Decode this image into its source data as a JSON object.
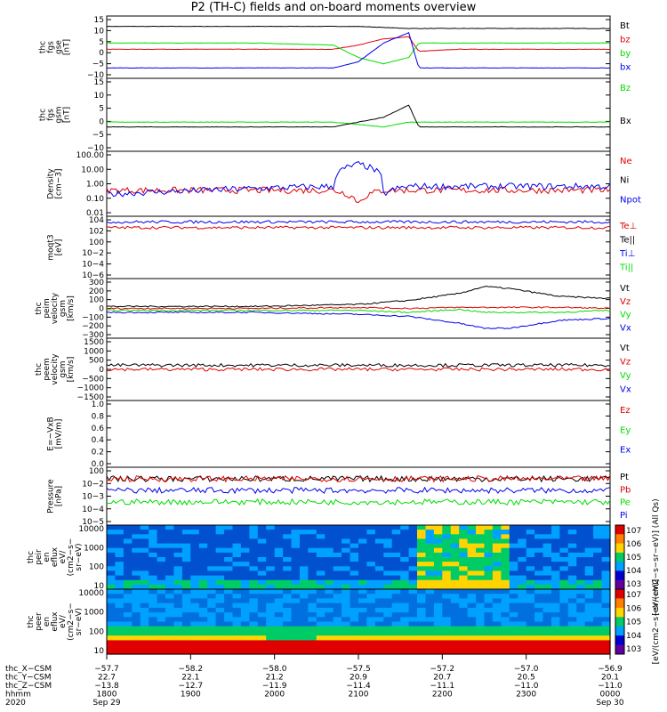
{
  "title": "P2 (TH-C) fields and on-board moments overview",
  "colors": {
    "black": "#000000",
    "red": "#e00000",
    "green": "#00dd00",
    "blue": "#0000ee",
    "axis": "#000000"
  },
  "chart_data": [
    {
      "type": "line",
      "ylabel": [
        "thc",
        "fgs",
        "gse",
        "[nT]"
      ],
      "ylim": [
        -15,
        15
      ],
      "yticks": [
        "15",
        "10",
        "5",
        "0",
        "−5",
        "−10"
      ],
      "legend": [
        {
          "label": "Bt",
          "color": "black"
        },
        {
          "label": "bz",
          "color": "red"
        },
        {
          "label": "by",
          "color": "green"
        },
        {
          "label": "bx",
          "color": "blue"
        }
      ],
      "series": [
        {
          "name": "Bt",
          "color": "black",
          "x": [
            0,
            0.3,
            0.5,
            0.55,
            0.6,
            0.62,
            0.7,
            0.8,
            0.9,
            1
          ],
          "y": [
            10,
            10,
            10,
            9.5,
            9,
            9,
            9,
            9,
            9,
            9
          ]
        },
        {
          "name": "bz",
          "color": "red",
          "x": [
            0,
            0.3,
            0.45,
            0.5,
            0.55,
            0.6,
            0.62,
            0.7,
            0.8,
            0.9,
            1
          ],
          "y": [
            -1,
            -1,
            -1,
            1,
            4,
            5,
            -2,
            -1,
            -1,
            -1,
            -1
          ]
        },
        {
          "name": "by",
          "color": "green",
          "x": [
            0,
            0.3,
            0.45,
            0.5,
            0.55,
            0.6,
            0.62,
            0.7,
            0.8,
            0.9,
            1
          ],
          "y": [
            2,
            2,
            1,
            -5,
            -8,
            -5,
            2,
            2,
            2,
            2,
            2
          ]
        },
        {
          "name": "bx",
          "color": "blue",
          "x": [
            0,
            0.3,
            0.45,
            0.5,
            0.55,
            0.6,
            0.62,
            0.7,
            0.8,
            0.9,
            1
          ],
          "y": [
            -10,
            -10,
            -10,
            -7,
            2,
            7,
            -10,
            -10,
            -10,
            -10,
            -10
          ]
        }
      ]
    },
    {
      "type": "line",
      "ylabel": [
        "thc",
        "fgs",
        "gsm",
        "[nT]"
      ],
      "ylim": [
        -15,
        15
      ],
      "yticks": [
        "15",
        "10",
        "5",
        "0",
        "−5",
        "−10"
      ],
      "legend": [
        {
          "label": "Bz",
          "color": "green"
        },
        {
          "label": "Bx",
          "color": "black"
        }
      ],
      "series": [
        {
          "name": "Bz",
          "color": "green",
          "x": [
            0,
            0.3,
            0.45,
            0.55,
            0.6,
            0.62,
            0.7,
            0.8,
            0.9,
            1
          ],
          "y": [
            -3,
            -3,
            -3,
            -5,
            -3,
            -3,
            -3,
            -3,
            -3,
            -3
          ]
        },
        {
          "name": "Bx",
          "color": "black",
          "x": [
            0,
            0.3,
            0.45,
            0.55,
            0.6,
            0.62,
            0.7,
            0.8,
            0.9,
            1
          ],
          "y": [
            -5,
            -5,
            -5,
            -1,
            4,
            -5,
            -5,
            -5,
            -5,
            -5
          ]
        }
      ]
    },
    {
      "type": "line",
      "ylabel": [
        "Density",
        "[cm−3]"
      ],
      "scale": "log",
      "ylim": [
        0.001,
        100
      ],
      "yticks": [
        "100.00",
        "10.00",
        "1.00",
        "0.10",
        "0.01"
      ],
      "legend": [
        {
          "label": "Ne",
          "color": "red"
        },
        {
          "label": "Ni",
          "color": "black"
        },
        {
          "label": "Npot",
          "color": "blue"
        }
      ],
      "series": [
        {
          "name": "Ne",
          "color": "red",
          "x": [
            0,
            0.2,
            0.45,
            0.5,
            0.55,
            0.6,
            0.65,
            0.75,
            0.85,
            1
          ],
          "y": [
            0.1,
            0.1,
            0.1,
            0.01,
            0.1,
            0.1,
            0.1,
            0.1,
            0.1,
            0.1
          ]
        },
        {
          "name": "Npot",
          "color": "blue",
          "x": [
            0,
            0.2,
            0.45,
            0.5,
            0.55,
            0.6,
            0.65,
            0.75,
            0.85,
            1
          ],
          "y": [
            0.05,
            0.1,
            0.2,
            10,
            0.05,
            0.2,
            0.2,
            0.2,
            0.2,
            0.2
          ]
        }
      ]
    },
    {
      "type": "line",
      "ylabel": [
        "moqt3",
        "[eV]"
      ],
      "scale": "log",
      "ylim": [
        1e-07,
        10000
      ],
      "yticks": [
        "104",
        "102",
        "100",
        "10−2",
        "10−4",
        "10−6"
      ],
      "legend": [
        {
          "label": "Te⊥",
          "color": "red"
        },
        {
          "label": "Te||",
          "color": "black"
        },
        {
          "label": "Ti⊥",
          "color": "blue"
        },
        {
          "label": "Ti||",
          "color": "green"
        }
      ],
      "series": [
        {
          "name": "Te",
          "color": "red",
          "x": [
            0,
            1
          ],
          "y": [
            100,
            100
          ]
        },
        {
          "name": "Ti",
          "color": "blue",
          "x": [
            0,
            1
          ],
          "y": [
            1000,
            1000
          ]
        }
      ]
    },
    {
      "type": "line",
      "ylabel": [
        "thc",
        "peim",
        "velocity",
        "gsm",
        "[km/s]"
      ],
      "ylim": [
        -300,
        300
      ],
      "yticks": [
        "300",
        "200",
        "100",
        "0",
        "−100",
        "−200",
        "−300"
      ],
      "legend": [
        {
          "label": "Vt",
          "color": "black"
        },
        {
          "label": "Vz",
          "color": "red"
        },
        {
          "label": "Vy",
          "color": "green"
        },
        {
          "label": "Vx",
          "color": "blue"
        }
      ],
      "series": [
        {
          "name": "Vt",
          "color": "black",
          "x": [
            0,
            0.3,
            0.5,
            0.6,
            0.7,
            0.75,
            0.8,
            0.9,
            1
          ],
          "y": [
            20,
            20,
            40,
            80,
            150,
            220,
            200,
            120,
            100
          ]
        },
        {
          "name": "Vz",
          "color": "red",
          "x": [
            0,
            0.3,
            0.5,
            0.6,
            0.7,
            0.75,
            0.8,
            0.9,
            1
          ],
          "y": [
            0,
            0,
            10,
            0,
            10,
            10,
            10,
            10,
            0
          ]
        },
        {
          "name": "Vy",
          "color": "green",
          "x": [
            0,
            0.3,
            0.5,
            0.6,
            0.7,
            0.75,
            0.8,
            0.9,
            1
          ],
          "y": [
            -20,
            -20,
            -20,
            -40,
            -10,
            -40,
            -40,
            -40,
            -20
          ]
        },
        {
          "name": "Vx",
          "color": "blue",
          "x": [
            0,
            0.3,
            0.5,
            0.6,
            0.7,
            0.75,
            0.8,
            0.9,
            1
          ],
          "y": [
            -40,
            -40,
            -60,
            -80,
            -150,
            -200,
            -200,
            -120,
            -100
          ]
        }
      ]
    },
    {
      "type": "line",
      "ylabel": [
        "thc",
        "peem",
        "velocity",
        "gsm",
        "[km/s]"
      ],
      "ylim": [
        -1500,
        1500
      ],
      "yticks": [
        "1500",
        "1000",
        "500",
        "0",
        "−500",
        "−1000",
        "−1500"
      ],
      "legend": [
        {
          "label": "Vt",
          "color": "black"
        },
        {
          "label": "Vz",
          "color": "red"
        },
        {
          "label": "Vy",
          "color": "green"
        },
        {
          "label": "Vx",
          "color": "blue"
        }
      ],
      "series": [
        {
          "name": "Vt",
          "color": "black",
          "x": [
            0,
            0.3,
            0.5,
            0.6,
            0.7,
            0.8,
            0.9,
            1
          ],
          "y": [
            200,
            200,
            200,
            200,
            200,
            200,
            200,
            200
          ]
        },
        {
          "name": "Vz",
          "color": "red",
          "x": [
            0,
            0.3,
            0.5,
            0.6,
            0.7,
            0.8,
            0.9,
            1
          ],
          "y": [
            0,
            0,
            0,
            0,
            0,
            0,
            0,
            0
          ]
        }
      ]
    },
    {
      "type": "line",
      "ylabel": [
        "E=−VxB",
        "[mV/m]"
      ],
      "ylim": [
        -1,
        1
      ],
      "yticks": [
        "1.0",
        "0.8",
        "0.6",
        "0.4",
        "0.2",
        "0.0"
      ],
      "legend": [
        {
          "label": "Ez",
          "color": "red"
        },
        {
          "label": "Ey",
          "color": "green"
        },
        {
          "label": "Ex",
          "color": "blue"
        }
      ],
      "series": []
    },
    {
      "type": "line",
      "ylabel": [
        "Pressure",
        "[nPa]"
      ],
      "scale": "log",
      "ylim": [
        1e-05,
        1
      ],
      "yticks": [
        "100",
        "10−2",
        "10−3",
        "10−4",
        "10−5"
      ],
      "legend": [
        {
          "label": "Pt",
          "color": "black"
        },
        {
          "label": "Pb",
          "color": "red"
        },
        {
          "label": "Pe",
          "color": "green"
        },
        {
          "label": "Pi",
          "color": "blue"
        }
      ],
      "series": [
        {
          "name": "Pt",
          "color": "black",
          "x": [
            0,
            0.6,
            0.9,
            1
          ],
          "y": [
            0.1,
            0.1,
            0.1,
            0.1
          ]
        },
        {
          "name": "Pb",
          "color": "red",
          "x": [
            0,
            0.6,
            0.9,
            1
          ],
          "y": [
            0.1,
            0.1,
            0.1,
            0.1
          ]
        },
        {
          "name": "Pe",
          "color": "green",
          "x": [
            0,
            0.6,
            0.9,
            1
          ],
          "y": [
            0.001,
            0.001,
            0.001,
            0.001
          ]
        },
        {
          "name": "Pi",
          "color": "blue",
          "x": [
            0,
            0.6,
            0.9,
            1
          ],
          "y": [
            0.01,
            0.01,
            0.01,
            0.01
          ]
        }
      ]
    },
    {
      "type": "heatmap",
      "ylabel": [
        "thc",
        "peir",
        "en",
        "eflux",
        "eV/",
        "(cm2−s−",
        "sr−eV)"
      ],
      "scale": "log",
      "ylim": [
        5,
        20000
      ],
      "yticks": [
        "10000",
        "1000",
        "100",
        "10"
      ],
      "colorbar": {
        "label": "[eV/(cm2−s−sr−eV)] (All Qs)",
        "ticks": [
          "107",
          "106",
          "105",
          "104",
          "103"
        ]
      }
    },
    {
      "type": "heatmap",
      "ylabel": [
        "thc",
        "peer",
        "en",
        "eflux",
        "eV/",
        "(cm2−s−",
        "sr−eV)"
      ],
      "scale": "log",
      "ylim": [
        5,
        20000
      ],
      "yticks": [
        "10000",
        "1000",
        "100",
        "10"
      ],
      "colorbar": {
        "label": "[eV/(cm2−s−sr−eV)]",
        "ticks": [
          "107",
          "106",
          "105",
          "104",
          "103"
        ]
      }
    }
  ],
  "footer": {
    "rows": [
      {
        "label": "thc_X−CSM",
        "values": [
          "−57.7",
          "−58.2",
          "−58.0",
          "−57.5",
          "−57.2",
          "−57.0",
          "−56.9"
        ]
      },
      {
        "label": "thc_Y−CSM",
        "values": [
          "22.7",
          "22.1",
          "21.2",
          "20.9",
          "20.7",
          "20.5",
          "20.1"
        ]
      },
      {
        "label": "thc_Z−CSM",
        "values": [
          "−13.8",
          "−12.7",
          "−11.9",
          "−11.4",
          "−11.1",
          "−11.0",
          "−11.0"
        ]
      },
      {
        "label": "hhmm",
        "values": [
          "1800",
          "1900",
          "2000",
          "2100",
          "2200",
          "2300",
          "0000"
        ]
      },
      {
        "label": "2020",
        "values": [
          "Sep 29",
          "",
          "",
          "",
          "",
          "",
          "Sep 30"
        ]
      }
    ]
  }
}
